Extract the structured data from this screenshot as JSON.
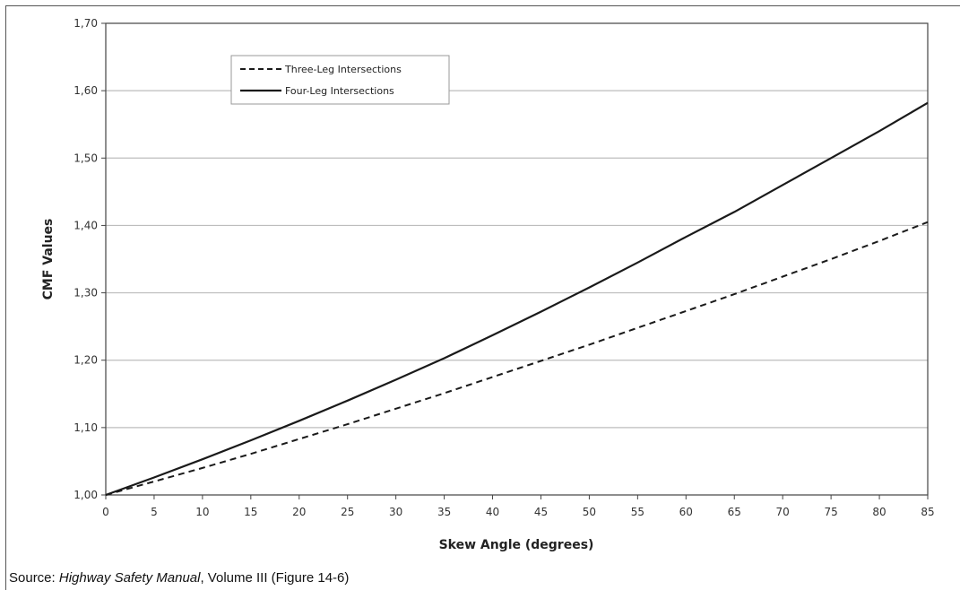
{
  "chart_data": {
    "type": "line",
    "title": "",
    "xlabel": "Skew Angle (degrees)",
    "ylabel": "CMF Values",
    "xlim": [
      0,
      85
    ],
    "ylim": [
      1.0,
      1.7
    ],
    "x_ticks": [
      "0",
      "5",
      "10",
      "15",
      "20",
      "25",
      "30",
      "35",
      "40",
      "45",
      "50",
      "55",
      "60",
      "65",
      "70",
      "75",
      "80",
      "85"
    ],
    "y_ticks": [
      "1,00",
      "1,10",
      "1,20",
      "1,30",
      "1,40",
      "1,50",
      "1,60",
      "1,70"
    ],
    "grid": "horizontal",
    "legend_position": "top-left",
    "x": [
      0,
      5,
      10,
      15,
      20,
      25,
      30,
      35,
      40,
      45,
      50,
      55,
      60,
      65,
      70,
      75,
      80,
      85
    ],
    "series": [
      {
        "name": "Three-Leg Intersections",
        "style": "dashed",
        "color": "#1a1a1a",
        "values": [
          1.0,
          1.02,
          1.04,
          1.061,
          1.083,
          1.105,
          1.128,
          1.151,
          1.175,
          1.199,
          1.223,
          1.248,
          1.273,
          1.298,
          1.324,
          1.35,
          1.377,
          1.405
        ]
      },
      {
        "name": "Four-Leg Intersections",
        "style": "solid",
        "color": "#1a1a1a",
        "values": [
          1.0,
          1.026,
          1.053,
          1.081,
          1.11,
          1.14,
          1.171,
          1.203,
          1.237,
          1.272,
          1.308,
          1.345,
          1.383,
          1.42,
          1.46,
          1.5,
          1.54,
          1.582
        ]
      }
    ]
  },
  "source": {
    "prefix": "Source: ",
    "title": "Highway Safety Manual",
    "suffix": ", Volume III (Figure 14-6)"
  }
}
